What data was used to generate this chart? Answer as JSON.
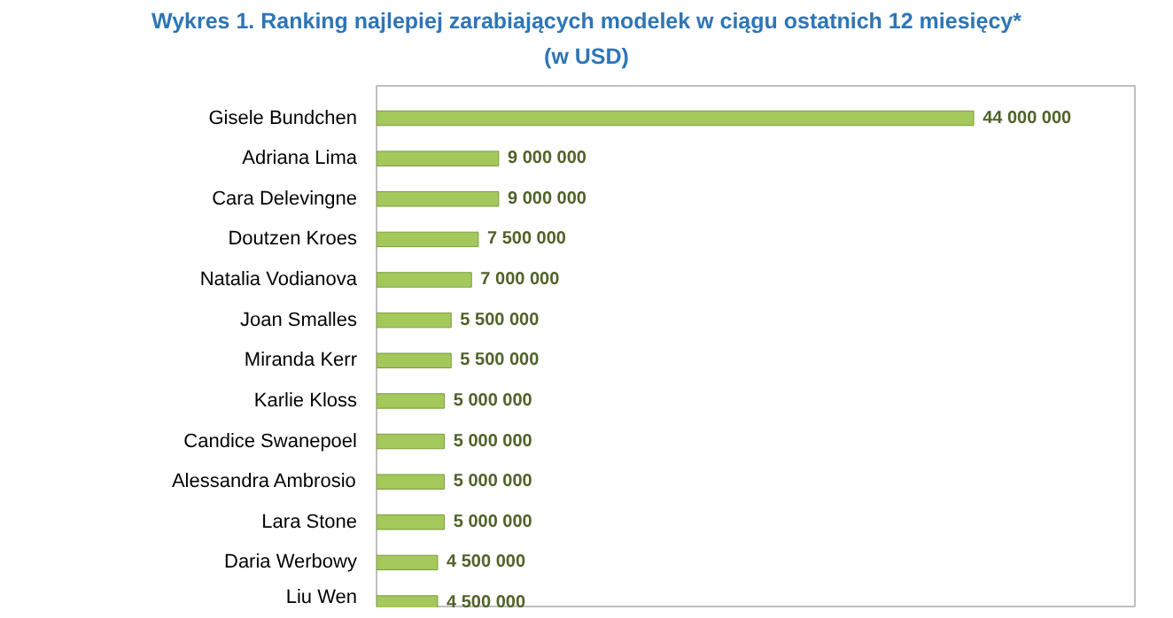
{
  "chart_data": {
    "type": "bar",
    "orientation": "horizontal",
    "title": "Wykres 1. Ranking najlepiej zarabiających modelek w ciągu ostatnich 12 miesięcy*",
    "subtitle": "(w USD)",
    "categories": [
      "Gisele Bundchen",
      "Adriana Lima",
      "Cara Delevingne",
      "Doutzen Kroes",
      "Natalia Vodianova",
      "Joan Smalles",
      "Miranda Kerr",
      "Karlie Kloss",
      "Candice Swanepoel",
      "Alessandra Ambrosio",
      "Lara Stone",
      "Daria Werbowy",
      "Liu Wen"
    ],
    "values": [
      44000000,
      9000000,
      9000000,
      7500000,
      7000000,
      5500000,
      5500000,
      5000000,
      5000000,
      5000000,
      5000000,
      4500000,
      4500000
    ],
    "value_labels": [
      "44 000 000",
      "9 000 000",
      "9 000 000",
      "7 500 000",
      "7 000 000",
      "5 500 000",
      "5 500 000",
      "5 000 000",
      "5 000 000",
      "5 000 000",
      "5 000 000",
      "4 500 000",
      "4 500 000"
    ],
    "color": "#a4c85c",
    "grid": false
  }
}
